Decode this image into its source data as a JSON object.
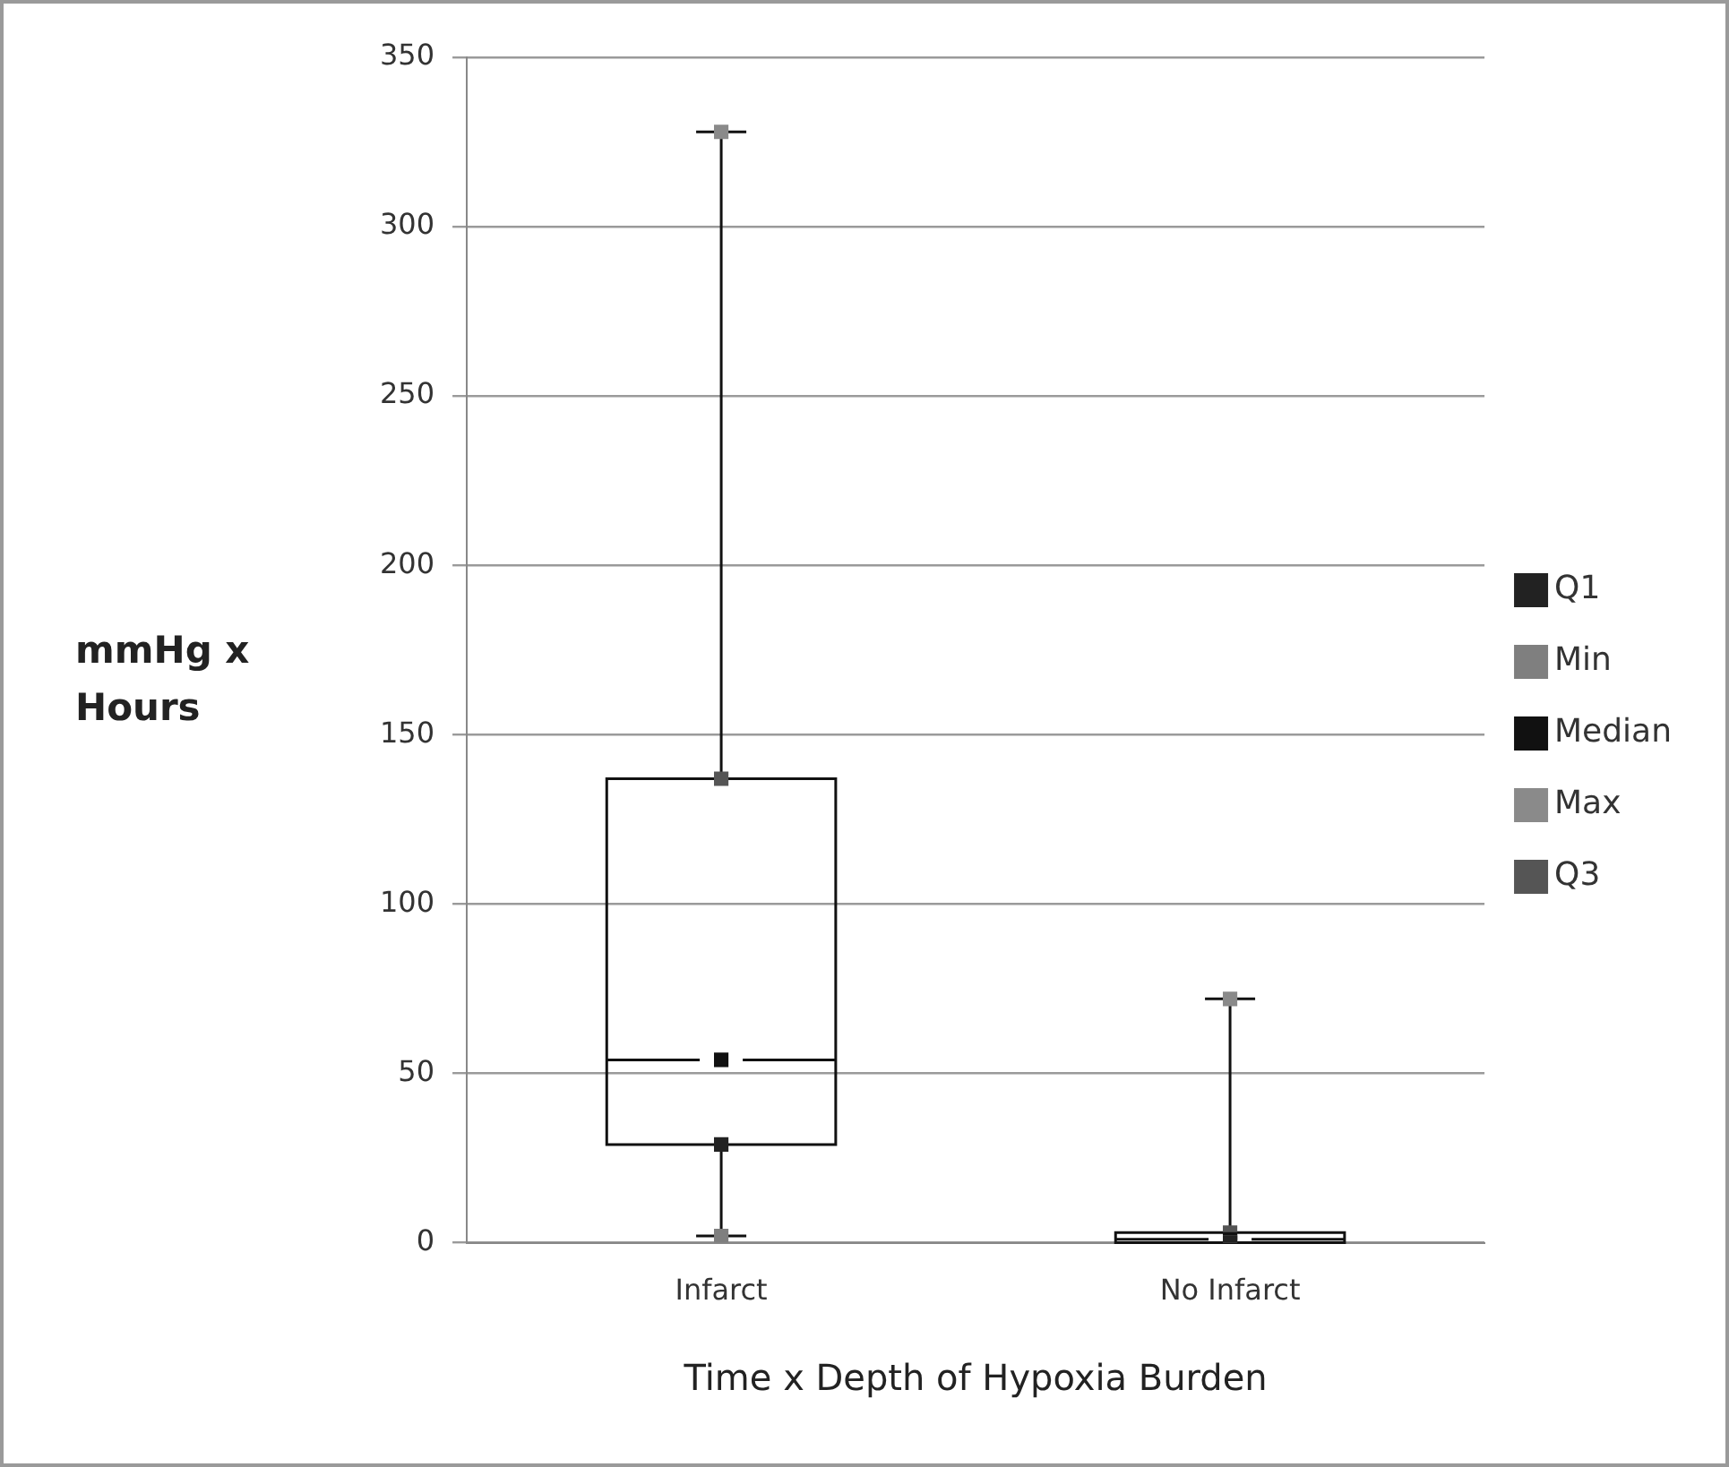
{
  "chart_data": {
    "type": "box",
    "xlabel": "Time x Depth of Hypoxia Burden",
    "ylabel": "mmHg x Hours",
    "categories": [
      "Infarct",
      "No Infarct"
    ],
    "boxes": [
      {
        "low": 2,
        "q1": 29,
        "median": 54,
        "q3": 137,
        "high": 328
      },
      {
        "low": 0,
        "q1": 0,
        "median": 1,
        "q3": 3,
        "high": 72
      }
    ],
    "series": [
      {
        "name": "Q1",
        "type": "scatter",
        "color": "#222222",
        "values": [
          29,
          0
        ]
      },
      {
        "name": "Min",
        "type": "scatter",
        "color": "#7f7f7f",
        "values": [
          2,
          0
        ]
      },
      {
        "name": "Median",
        "type": "scatter",
        "color": "#111111",
        "values": [
          54,
          1
        ]
      },
      {
        "name": "Max",
        "type": "scatter",
        "color": "#8a8a8a",
        "values": [
          328,
          72
        ]
      },
      {
        "name": "Q3",
        "type": "scatter",
        "color": "#555555",
        "values": [
          137,
          3
        ]
      }
    ],
    "ylim": [
      0,
      350
    ],
    "yticks": [
      0,
      50,
      100,
      150,
      200,
      250,
      300,
      350
    ],
    "grid": "y",
    "legend": "right",
    "marker": "square"
  }
}
